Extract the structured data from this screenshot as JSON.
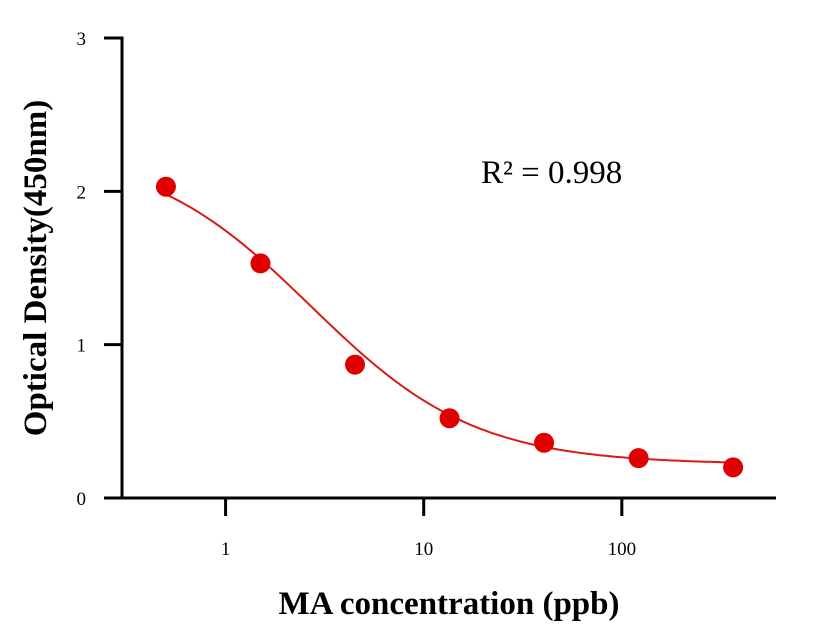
{
  "chart_data": {
    "type": "scatter",
    "title": "",
    "xlabel": "MA concentration (ppb)",
    "ylabel": "Optical Density(450nm)",
    "x_scale": "log",
    "xlim": [
      0.3,
      600
    ],
    "ylim": [
      0,
      3
    ],
    "x_ticks": [
      1,
      10,
      100
    ],
    "x_tick_labels": [
      "1",
      "10",
      "100"
    ],
    "y_ticks": [
      0,
      1,
      2,
      3
    ],
    "y_tick_labels": [
      "0",
      "1",
      "2",
      "3"
    ],
    "grid": false,
    "legend": "none",
    "color": "#e00000",
    "line_color": "#d91a1a",
    "annotation": "R² = 0.998",
    "points": [
      {
        "x": 0.5,
        "y": 2.03
      },
      {
        "x": 1.5,
        "y": 1.53
      },
      {
        "x": 4.5,
        "y": 0.87
      },
      {
        "x": 13.5,
        "y": 0.52
      },
      {
        "x": 40.5,
        "y": 0.36
      },
      {
        "x": 121.5,
        "y": 0.26
      },
      {
        "x": 364.5,
        "y": 0.2
      }
    ],
    "fit_curve": {
      "model": "4PL",
      "A": 2.28,
      "D": 0.22,
      "C": 2.7,
      "B": 1.05
    }
  }
}
